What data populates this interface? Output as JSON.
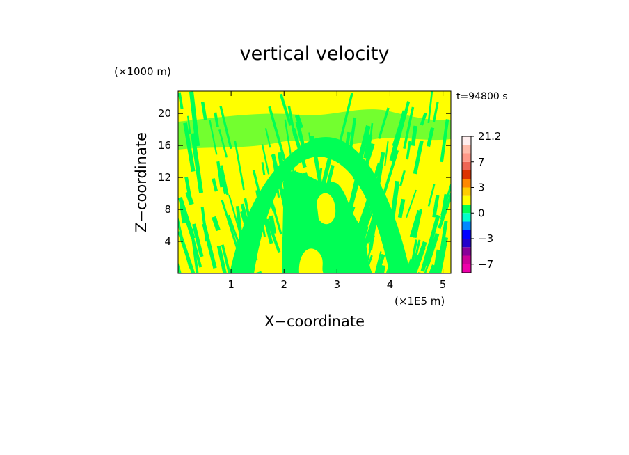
{
  "chart_data": {
    "type": "heatmap",
    "title": "vertical velocity",
    "time_label": "t=94800 s",
    "xlabel": "X−coordinate",
    "ylabel": "Z−coordinate",
    "x_unit": "(×1E5 m)",
    "y_unit": "(×1000 m)",
    "xlim": [
      0,
      5.15
    ],
    "ylim": [
      0,
      22.8
    ],
    "x_ticks": [
      1,
      2,
      3,
      4,
      5
    ],
    "y_ticks": [
      4,
      8,
      12,
      16,
      20
    ],
    "background_color": "#ffff00",
    "field_color": "#00ff55",
    "colorbar": {
      "tick_labels": [
        {
          "label": "21.2",
          "value": 21.2
        },
        {
          "label": "7",
          "value": 7
        },
        {
          "label": "3",
          "value": 3
        },
        {
          "label": "0",
          "value": 0
        },
        {
          "label": "−3",
          "value": -3
        },
        {
          "label": "−7",
          "value": -7
        }
      ],
      "levels": [
        {
          "from": -10,
          "to": -7,
          "color": "#ee00aa"
        },
        {
          "from": -7,
          "to": -5,
          "color": "#cc0099"
        },
        {
          "from": -5,
          "to": -4,
          "color": "#880099"
        },
        {
          "from": -4,
          "to": -3,
          "color": "#2200cc"
        },
        {
          "from": -3,
          "to": -2,
          "color": "#0000ff"
        },
        {
          "from": -2,
          "to": -1,
          "color": "#0088ff"
        },
        {
          "from": -1,
          "to": 0,
          "color": "#00ffcc"
        },
        {
          "from": 0,
          "to": 1,
          "color": "#00ff55"
        },
        {
          "from": 1,
          "to": 2,
          "color": "#ffff00"
        },
        {
          "from": 2,
          "to": 3,
          "color": "#ffcc00"
        },
        {
          "from": 3,
          "to": 4,
          "color": "#ff8800"
        },
        {
          "from": 4,
          "to": 5,
          "color": "#dd3300"
        },
        {
          "from": 5,
          "to": 7,
          "color": "#ee6655"
        },
        {
          "from": 7,
          "to": 10,
          "color": "#ff9988"
        },
        {
          "from": 10,
          "to": 15,
          "color": "#ffbbaa"
        },
        {
          "from": 15,
          "to": 21.2,
          "color": "#ffeeee"
        }
      ]
    }
  }
}
